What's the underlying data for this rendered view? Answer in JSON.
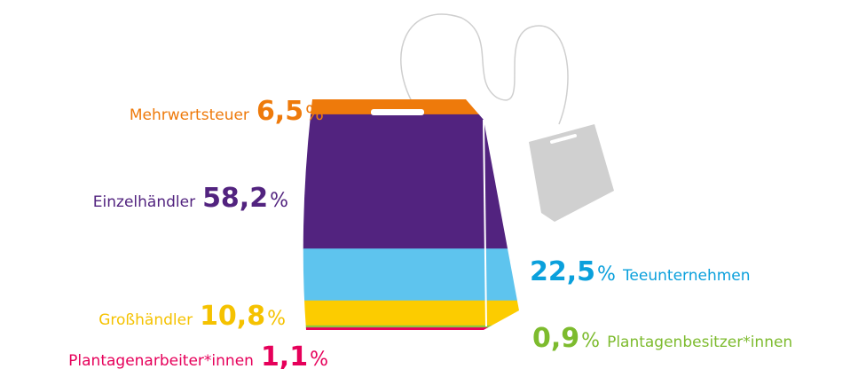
{
  "chart_data": {
    "type": "stacked",
    "unit": "%",
    "segments": [
      {
        "name": "Mehrwertsteuer",
        "value": 6.5,
        "value_label": "6,5",
        "color": "#ee7a0b",
        "label_color": "#ee7a0b"
      },
      {
        "name": "Einzelhändler",
        "value": 58.2,
        "value_label": "58,2",
        "color": "#52237f",
        "label_color": "#52237f"
      },
      {
        "name": "Teeunternehmen",
        "value": 22.5,
        "value_label": "22,5",
        "color": "#5ec4ee",
        "label_color": "#0aa0dc"
      },
      {
        "name": "Großhändler",
        "value": 10.8,
        "value_label": "10,8",
        "color": "#fccc00",
        "label_color": "#f5c200"
      },
      {
        "name": "Plantagenbesitzer*innen",
        "value": 0.9,
        "value_label": "0,9",
        "color": "#8cc63e",
        "label_color": "#7dbb2e"
      },
      {
        "name": "Plantagenarbeiter*innen",
        "value": 1.1,
        "value_label": "1,1",
        "color": "#e6005a",
        "label_color": "#e6005a"
      }
    ]
  }
}
